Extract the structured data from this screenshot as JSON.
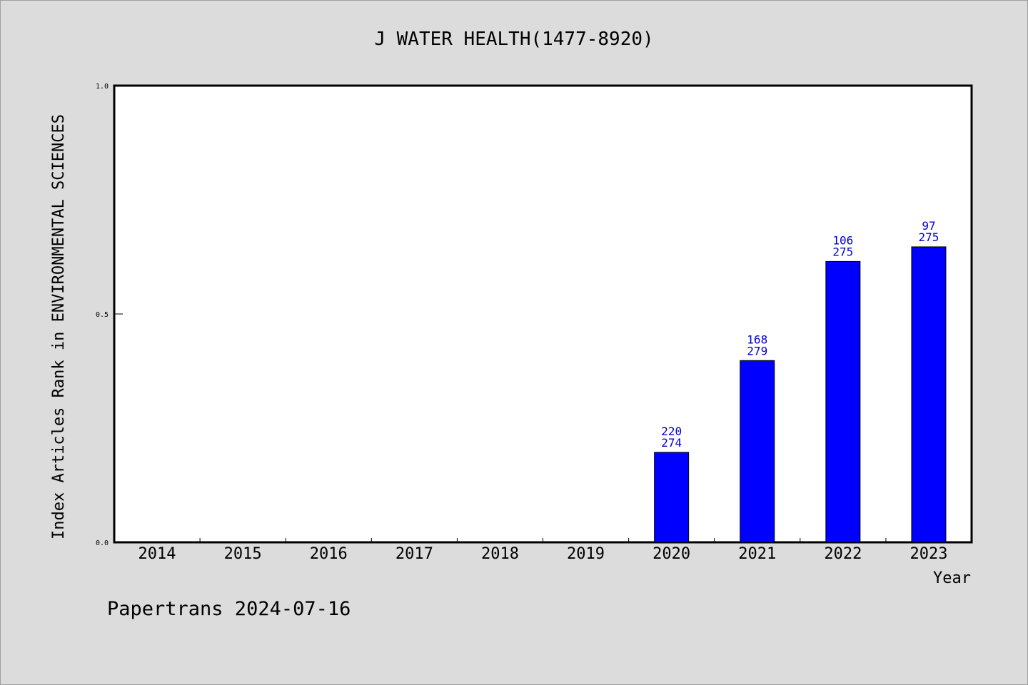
{
  "chart_data": {
    "type": "bar",
    "title": "J WATER HEALTH(1477-8920)",
    "xlabel": "Year",
    "ylabel": "Index Articles Rank in ENVIRONMENTAL SCIENCES",
    "ylim": [
      0,
      1.0
    ],
    "yticks": [
      "0.0",
      "0.5",
      "1.0"
    ],
    "categories": [
      "2014",
      "2015",
      "2016",
      "2017",
      "2018",
      "2019",
      "2020",
      "2021",
      "2022",
      "2023"
    ],
    "values": [
      null,
      null,
      null,
      null,
      null,
      null,
      0.197,
      0.398,
      0.615,
      0.647
    ],
    "rank": [
      null,
      null,
      null,
      null,
      null,
      null,
      "220",
      "168",
      "106",
      "97"
    ],
    "total": [
      null,
      null,
      null,
      null,
      null,
      null,
      "274",
      "279",
      "275",
      "275"
    ],
    "bar_color": "#0000ff",
    "label_color": "#0000cc",
    "grid": false,
    "legend": "none"
  },
  "footer": "Papertrans 2024-07-16"
}
